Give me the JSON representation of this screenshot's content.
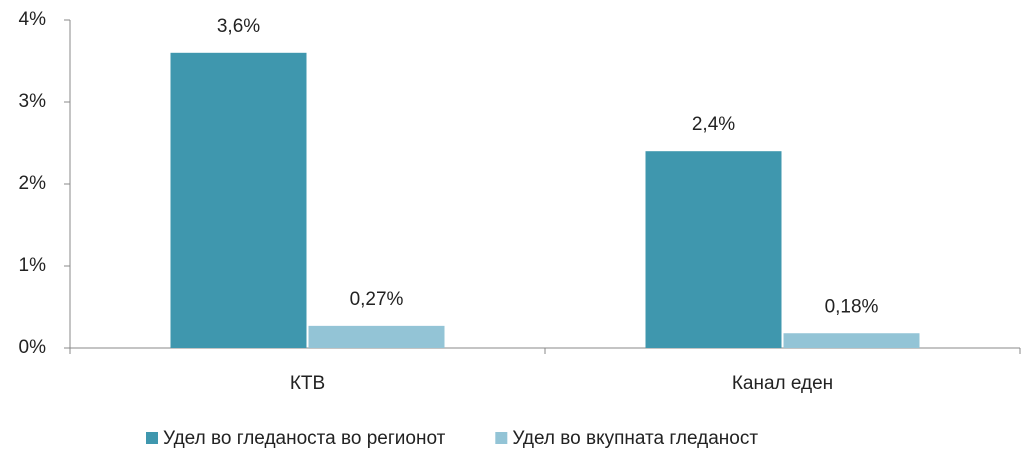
{
  "chart_data": {
    "type": "bar",
    "categories": [
      "КТВ",
      "Канал еден"
    ],
    "series": [
      {
        "name": "Удел во гледаноста во регионот",
        "color": "#3f97ae",
        "values": [
          3.6,
          2.4
        ],
        "value_labels": [
          "3,6%",
          "2,4%"
        ]
      },
      {
        "name": "Удел во вкупната гледаност",
        "color": "#93c4d6",
        "values": [
          0.27,
          0.18
        ],
        "value_labels": [
          "0,27%",
          "0,18%"
        ]
      }
    ],
    "ylim": [
      0,
      4
    ],
    "yticks": [
      {
        "value": 0,
        "label": "0%"
      },
      {
        "value": 1,
        "label": "1%"
      },
      {
        "value": 2,
        "label": "2%"
      },
      {
        "value": 3,
        "label": "3%"
      },
      {
        "value": 4,
        "label": "4%"
      }
    ],
    "legend": "bottom"
  }
}
